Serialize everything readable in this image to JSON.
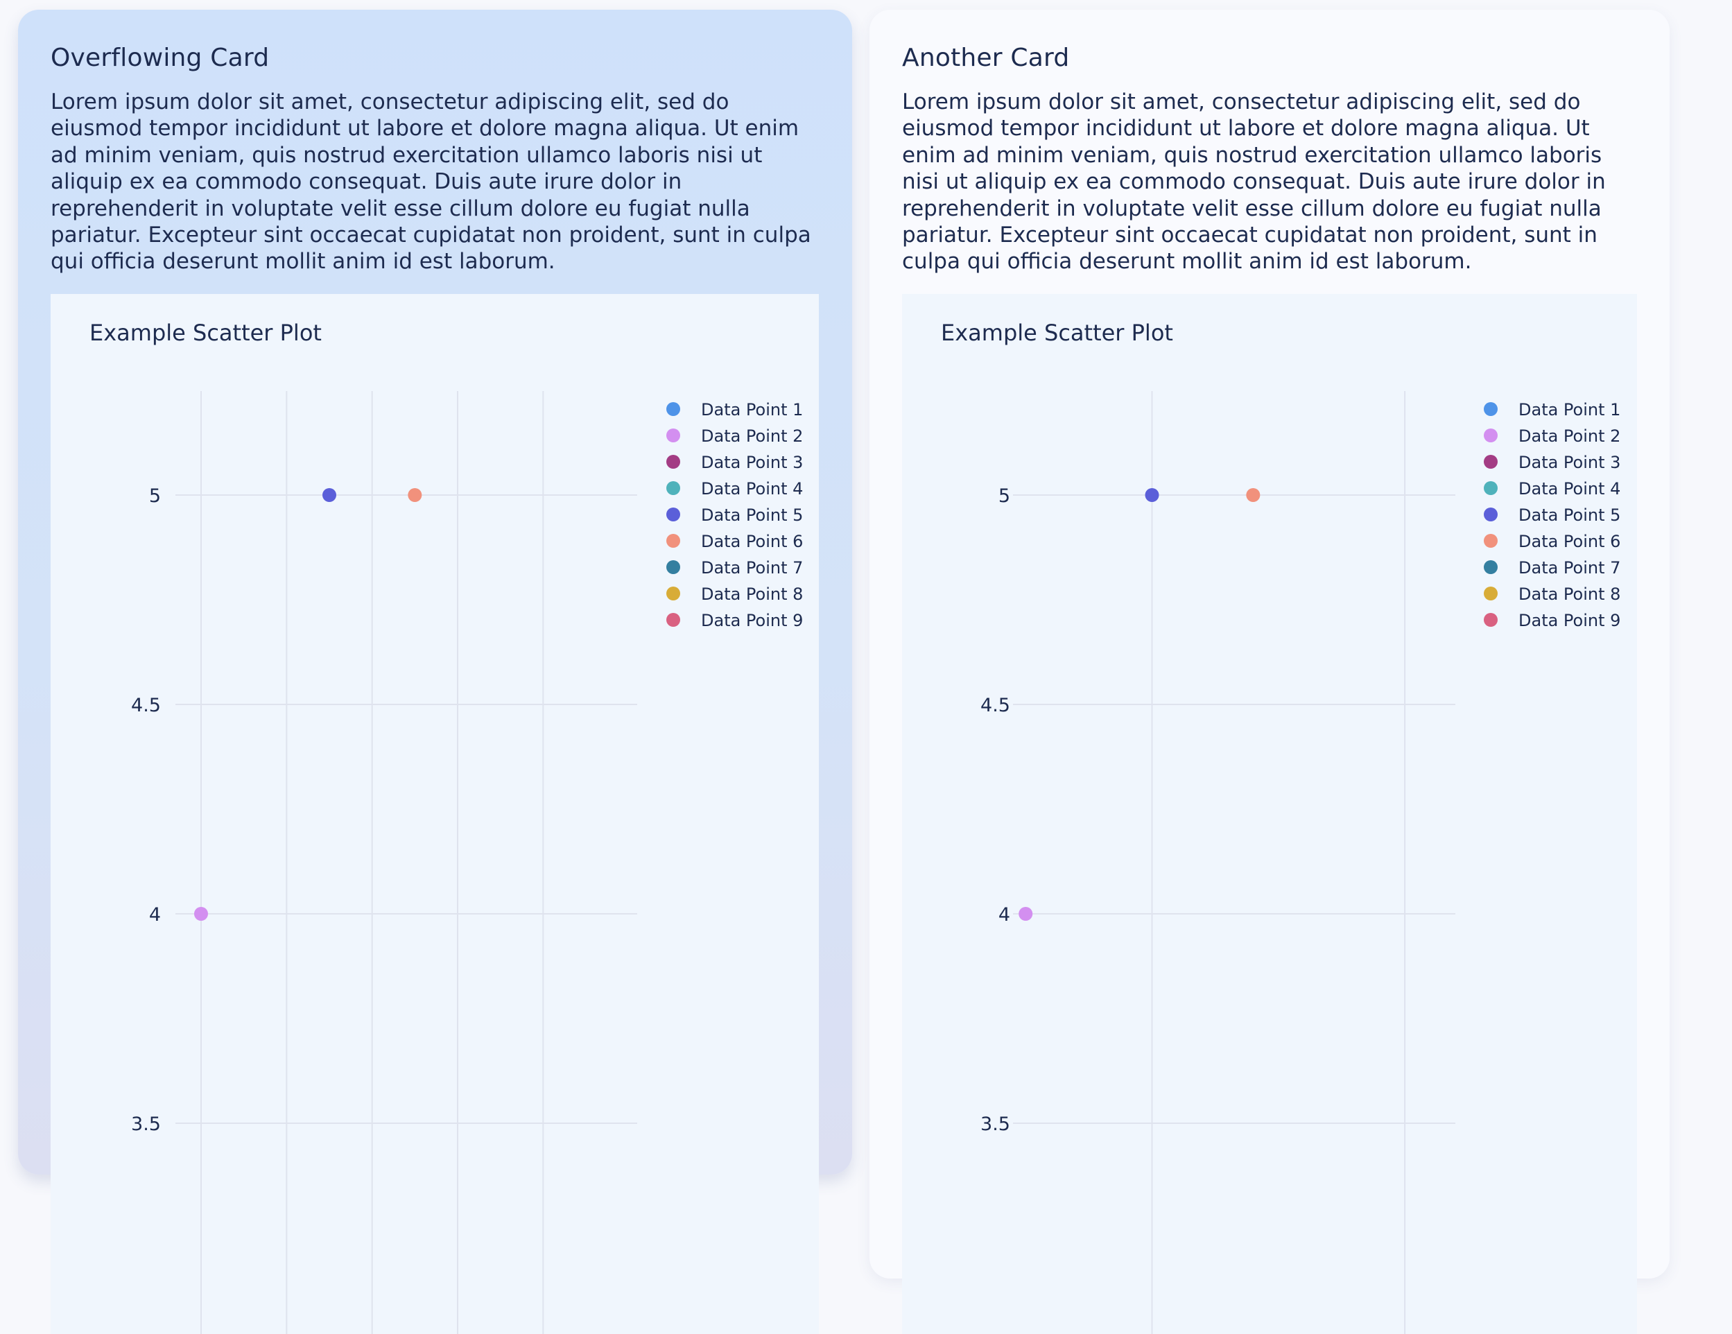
{
  "cards": [
    {
      "title": "Overflowing Card",
      "body": "Lorem ipsum dolor sit amet, consectetur adipiscing elit, sed do eiusmod tempor incididunt ut labore et dolore magna aliqua. Ut enim ad minim veniam, quis nostrud exercitation ullamco laboris nisi ut aliquip ex ea commodo consequat. Duis aute irure dolor in reprehenderit in voluptate velit esse cillum dolore eu fugiat nulla pariatur. Excepteur sint occaecat cupidatat non proident, sunt in culpa qui officia deserunt mollit anim id est laborum."
    },
    {
      "title": "Another Card",
      "body": "Lorem ipsum dolor sit amet, consectetur adipiscing elit, sed do eiusmod tempor incididunt ut labore et dolore magna aliqua. Ut enim ad minim veniam, quis nostrud exercitation ullamco laboris nisi ut aliquip ex ea commodo consequat. Duis aute irure dolor in reprehenderit in voluptate velit esse cillum dolore eu fugiat nulla pariatur. Excepteur sint occaecat cupidatat non proident, sunt in culpa qui officia deserunt mollit anim id est laborum."
    }
  ],
  "chart_data": [
    {
      "type": "scatter",
      "title": "Example Scatter Plot",
      "xlabel": "",
      "ylabel": "",
      "y_ticks": [
        "5",
        "4.5",
        "4",
        "3.5"
      ],
      "y_tick_values": [
        5,
        4.5,
        4,
        3.5
      ],
      "ylim": [
        3.25,
        5.25
      ],
      "xlim": [
        0.85,
        3.55
      ],
      "x_gridlines": [
        1,
        1.5,
        2,
        2.5,
        3
      ],
      "legend_position": "top-right",
      "grid": true,
      "series": [
        {
          "name": "Data Point 1",
          "color": "#4e93e8",
          "points": []
        },
        {
          "name": "Data Point 2",
          "color": "#d38ff0",
          "points": [
            {
              "x": 1,
              "y": 4
            }
          ]
        },
        {
          "name": "Data Point 3",
          "color": "#a33c84",
          "points": []
        },
        {
          "name": "Data Point 4",
          "color": "#4fb2bb",
          "points": []
        },
        {
          "name": "Data Point 5",
          "color": "#5b5fd9",
          "points": [
            {
              "x": 1.75,
              "y": 5
            }
          ]
        },
        {
          "name": "Data Point 6",
          "color": "#f1917c",
          "points": [
            {
              "x": 2.25,
              "y": 5
            }
          ]
        },
        {
          "name": "Data Point 7",
          "color": "#347fa0",
          "points": []
        },
        {
          "name": "Data Point 8",
          "color": "#d8ac37",
          "points": []
        },
        {
          "name": "Data Point 9",
          "color": "#d96181",
          "points": []
        }
      ]
    },
    {
      "type": "scatter",
      "title": "Example Scatter Plot",
      "xlabel": "",
      "ylabel": "",
      "y_ticks": [
        "5",
        "4.5",
        "4",
        "3.5"
      ],
      "y_tick_values": [
        5,
        4.5,
        4,
        3.5
      ],
      "ylim": [
        3.25,
        5.25
      ],
      "xlim": [
        1.45,
        3.2
      ],
      "x_gridlines": [
        2,
        3
      ],
      "legend_position": "top-right",
      "grid": true,
      "series": [
        {
          "name": "Data Point 1",
          "color": "#4e93e8",
          "points": []
        },
        {
          "name": "Data Point 2",
          "color": "#d38ff0",
          "points": [
            {
              "x": 1.5,
              "y": 4
            }
          ]
        },
        {
          "name": "Data Point 3",
          "color": "#a33c84",
          "points": []
        },
        {
          "name": "Data Point 4",
          "color": "#4fb2bb",
          "points": []
        },
        {
          "name": "Data Point 5",
          "color": "#5b5fd9",
          "points": [
            {
              "x": 2,
              "y": 5
            }
          ]
        },
        {
          "name": "Data Point 6",
          "color": "#f1917c",
          "points": [
            {
              "x": 2.4,
              "y": 5
            }
          ]
        },
        {
          "name": "Data Point 7",
          "color": "#347fa0",
          "points": []
        },
        {
          "name": "Data Point 8",
          "color": "#d8ac37",
          "points": []
        },
        {
          "name": "Data Point 9",
          "color": "#d96181",
          "points": []
        }
      ]
    }
  ],
  "colors": {
    "page_background": "#f7f8fc",
    "card_gradient_top": "#cfe1fa",
    "card_gradient_bottom": "#dcdff2",
    "card_plain_background": "#f9fafe",
    "chart_background": "#f0f6fd",
    "text": "#1d2b4f",
    "gridline": "#dfe3ee"
  }
}
